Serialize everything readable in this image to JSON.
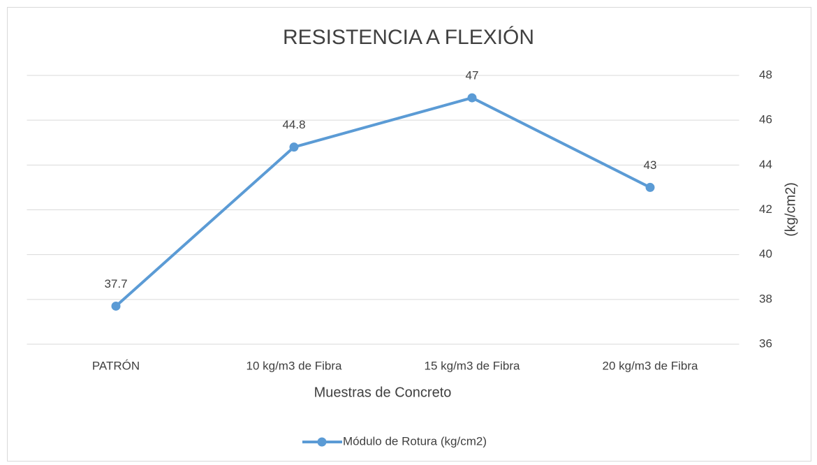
{
  "chart_data": {
    "type": "line",
    "title": "RESISTENCIA A FLEXIÓN",
    "x_label": "Muestras de Concreto",
    "y_label": "(kg/cm2)",
    "categories": [
      "PATRÓN",
      "10 kg/m3 de Fibra",
      "15 kg/m3 de Fibra",
      "20 kg/m3 de Fibra"
    ],
    "series": [
      {
        "name": "Módulo de Rotura (kg/cm2)",
        "color": "#5b9bd5",
        "values": [
          37.7,
          44.8,
          47,
          43
        ]
      }
    ],
    "ylim": [
      36,
      48
    ],
    "yticks": [
      36,
      38,
      40,
      42,
      44,
      46,
      48
    ],
    "grid": true,
    "y_axis_side": "right",
    "legend": "bottom",
    "data_labels": true
  }
}
